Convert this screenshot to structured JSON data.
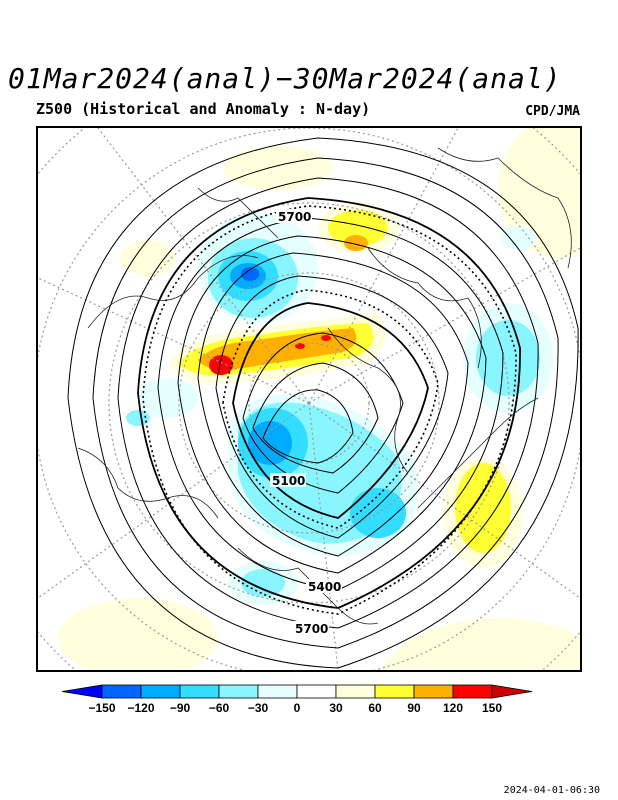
{
  "title": "01Mar2024(anal)−30Mar2024(anal)",
  "subtitle": "Z500 (Historical and Anomaly : N-day)",
  "agency": "CPD/JMA",
  "timestamp": "2024-04-01-06:30",
  "contour_labels": [
    "5700",
    "5100",
    "5400",
    "5700"
  ],
  "colorbar": {
    "ticks": [
      "−150",
      "−120",
      "−90",
      "−60",
      "−30",
      "0",
      "30",
      "60",
      "90",
      "120",
      "150"
    ],
    "colors": [
      "#0000ff",
      "#0066ff",
      "#00aaff",
      "#33ddff",
      "#88f5ff",
      "#e5ffff",
      "#ffffff",
      "#ffffdd",
      "#ffff33",
      "#ffb000",
      "#ff0000",
      "#cc0000"
    ]
  }
}
